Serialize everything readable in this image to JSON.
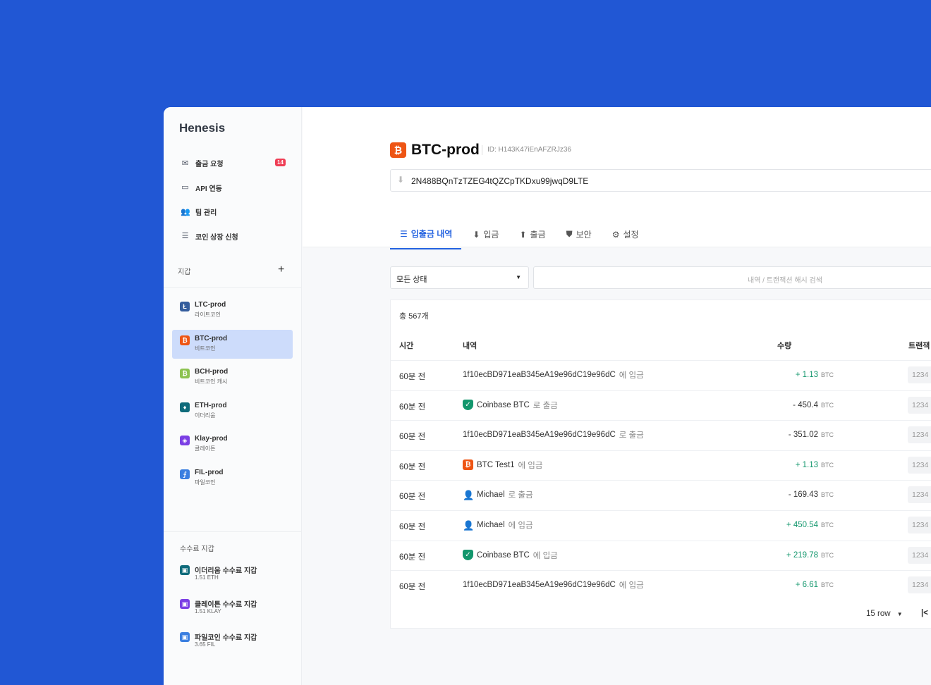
{
  "app": {
    "name": "Henesis"
  },
  "sidebar": {
    "nav": [
      {
        "label": "출금 요청",
        "icon": "mail-icon",
        "badge": "14"
      },
      {
        "label": "API 연동",
        "icon": "laptop-icon"
      },
      {
        "label": "팀 관리",
        "icon": "team-icon"
      },
      {
        "label": "코인 상장 신청",
        "icon": "list-icon"
      }
    ],
    "wallet_section": "지갑",
    "add_label": "+",
    "wallets": [
      {
        "name": "LTC-prod",
        "sub": "라이트코인",
        "color": "#345d9d",
        "glyph": "Ł"
      },
      {
        "name": "BTC-prod",
        "sub": "비트코인",
        "color": "#ee5514",
        "glyph": "₿",
        "selected": true
      },
      {
        "name": "BCH-prod",
        "sub": "비트코인 캐시",
        "color": "#8dc351",
        "glyph": "₿"
      },
      {
        "name": "ETH-prod",
        "sub": "이더리움",
        "color": "#0f6b7b",
        "glyph": "♦"
      },
      {
        "name": "Klay-prod",
        "sub": "클레이튼",
        "color": "#7b3fe4",
        "glyph": "◈"
      },
      {
        "name": "FIL-prod",
        "sub": "파일코인",
        "color": "#3b7fe0",
        "glyph": "⨍"
      }
    ],
    "fee_section": "수수료 지갑",
    "fee_wallets": [
      {
        "name": "이더리움 수수료 지갑",
        "sub": "1.51 ETH",
        "color": "#0f6b7b"
      },
      {
        "name": "클레이튼 수수료 지갑",
        "sub": "1.51 KLAY",
        "color": "#7b3fe4"
      },
      {
        "name": "파일코인 수수료 지갑",
        "sub": "3.65 FIL",
        "color": "#3b7fe0"
      }
    ]
  },
  "header": {
    "title": "BTC-prod",
    "id": "ID: H143K47iEnAFZRJz36",
    "address": "2N488BQnTzTZEG4tQZCpTKDxu99jwqD9LTE"
  },
  "tabs": [
    {
      "label": "입출금 내역",
      "icon": "list-icon",
      "active": true
    },
    {
      "label": "입금",
      "icon": "download-icon"
    },
    {
      "label": "출금",
      "icon": "upload-icon"
    },
    {
      "label": "보안",
      "icon": "shield-icon"
    },
    {
      "label": "설정",
      "icon": "gear-icon"
    }
  ],
  "filter": {
    "status": "모든 상태",
    "search_placeholder": "내역 / 트랜잭션 해시 검색"
  },
  "table": {
    "total": "총 567개",
    "headers": [
      "시간",
      "내역",
      "수량",
      "트랜잭"
    ],
    "rows": [
      {
        "time": "60분 전",
        "icon": "",
        "party": "1f10ecBD971eaB345eA19e96dC19e96dC",
        "action": "에 입금",
        "sign": "+",
        "amount": "1.13",
        "unit": "BTC",
        "tx": "1234"
      },
      {
        "time": "60분 전",
        "icon": "verified-shield-icon",
        "party": "Coinbase BTC",
        "action": "로 출금",
        "sign": "-",
        "amount": "450.4",
        "unit": "BTC",
        "tx": "1234"
      },
      {
        "time": "60분 전",
        "icon": "",
        "party": "1f10ecBD971eaB345eA19e96dC19e96dC",
        "action": "로 출금",
        "sign": "-",
        "amount": "351.02",
        "unit": "BTC",
        "tx": "1234"
      },
      {
        "time": "60분 전",
        "icon": "bitcoin-icon",
        "party": "BTC Test1",
        "action": "에 입금",
        "sign": "+",
        "amount": "1.13",
        "unit": "BTC",
        "tx": "1234"
      },
      {
        "time": "60분 전",
        "icon": "user-icon",
        "party": "Michael",
        "action": "로 출금",
        "sign": "-",
        "amount": "169.43",
        "unit": "BTC",
        "tx": "1234"
      },
      {
        "time": "60분 전",
        "icon": "user-icon",
        "party": "Michael",
        "action": "에 입금",
        "sign": "+",
        "amount": "450.54",
        "unit": "BTC",
        "tx": "1234"
      },
      {
        "time": "60분 전",
        "icon": "verified-shield-icon",
        "party": "Coinbase BTC",
        "action": "에 입금",
        "sign": "+",
        "amount": "219.78",
        "unit": "BTC",
        "tx": "1234"
      },
      {
        "time": "60분 전",
        "icon": "",
        "party": "1f10ecBD971eaB345eA19e96dC19e96dC",
        "action": "에 입금",
        "sign": "+",
        "amount": "6.61",
        "unit": "BTC",
        "tx": "1234"
      }
    ],
    "page_size": "15 row"
  },
  "colors": {
    "background": "#2157d4",
    "accent": "#2362e0",
    "positive": "#13976d",
    "badge": "#ef3e55"
  }
}
